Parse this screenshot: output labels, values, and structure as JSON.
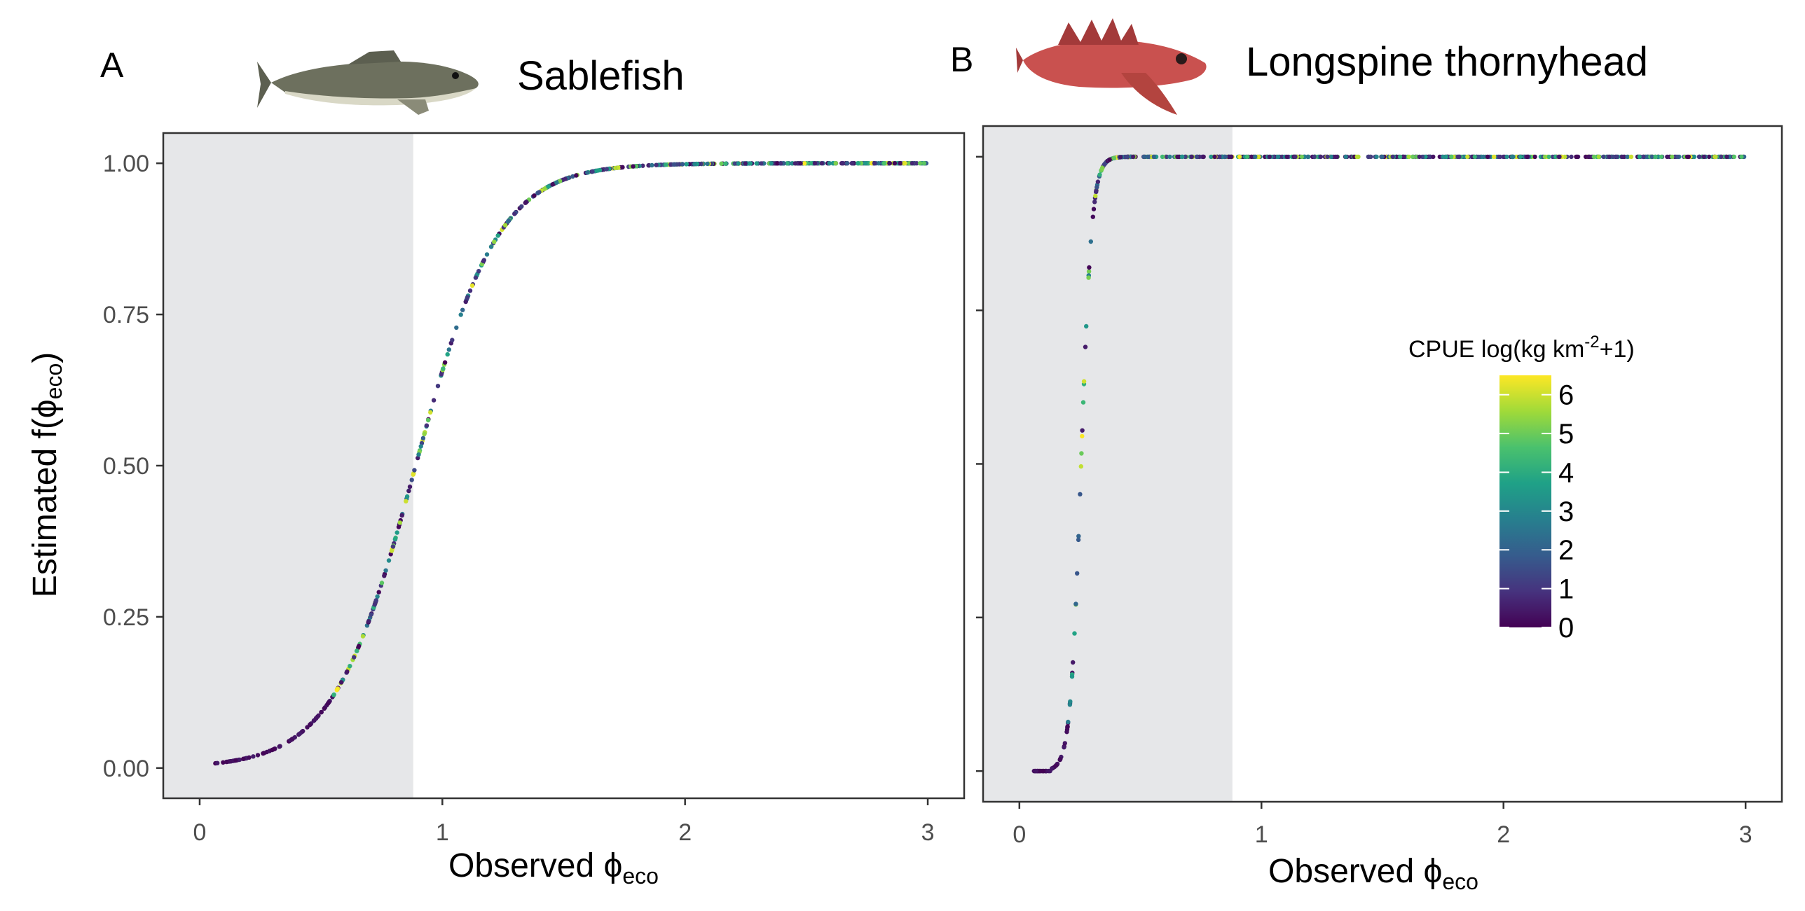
{
  "colors": {
    "shade": "#e6e7e9",
    "frame": "#333333",
    "viridis": [
      "#440154",
      "#46337e",
      "#365c8d",
      "#277f8e",
      "#1fa187",
      "#4ac16d",
      "#a0da39",
      "#fde725"
    ]
  },
  "icons": [
    "sablefish-illustration",
    "longspine-thornyhead-illustration"
  ],
  "chart_data": [
    {
      "type": "scatter",
      "panel": "A",
      "title": "Sablefish",
      "xlabel": "Observed",
      "xlabel_symbol": "ϕ",
      "xlabel_sub": "eco",
      "ylabel": "Estimated f(",
      "ylabel_symbol": "ϕ",
      "ylabel_sub": "eco",
      "ylabel_close": ")",
      "xlim": [
        -0.15,
        3.15
      ],
      "ylim": [
        -0.05,
        1.05
      ],
      "xticks": [
        0,
        1,
        2,
        3
      ],
      "xtick_labels": [
        "0",
        "1",
        "2",
        "3"
      ],
      "yticks": [
        0,
        0.25,
        0.5,
        0.75,
        1
      ],
      "ytick_labels": [
        "0.00",
        "0.25",
        "0.50",
        "0.75",
        "1.00"
      ],
      "shaded_x_range": [
        -0.15,
        0.88
      ],
      "curve": {
        "form": "logistic",
        "midpoint": 0.89,
        "scale": 0.17
      },
      "x_range": [
        0.06,
        3.0
      ],
      "colorbar_range": [
        0,
        6.5
      ]
    },
    {
      "type": "scatter",
      "panel": "B",
      "title": "Longspine thornyhead",
      "xlabel": "Observed",
      "xlabel_symbol": "ϕ",
      "xlabel_sub": "eco",
      "xlim": [
        -0.15,
        3.15
      ],
      "ylim": [
        -0.05,
        1.05
      ],
      "xticks": [
        0,
        1,
        2,
        3
      ],
      "xtick_labels": [
        "0",
        "1",
        "2",
        "3"
      ],
      "yticks": [
        0,
        0.25,
        0.5,
        0.75,
        1
      ],
      "shaded_x_range": [
        -0.15,
        0.88
      ],
      "curve": {
        "form": "logistic",
        "midpoint": 0.255,
        "scale": 0.022
      },
      "x_range": [
        0.06,
        3.0
      ],
      "colorbar_range": [
        0,
        6.5
      ]
    }
  ],
  "legend": {
    "title": "CPUE log(kg km",
    "title_sup": "-2",
    "title_end": "+1)",
    "range": [
      0,
      6.5
    ],
    "ticks": [
      0,
      1,
      2,
      3,
      4,
      5,
      6
    ],
    "tick_labels": [
      "0",
      "1",
      "2",
      "3",
      "4",
      "5",
      "6"
    ]
  }
}
